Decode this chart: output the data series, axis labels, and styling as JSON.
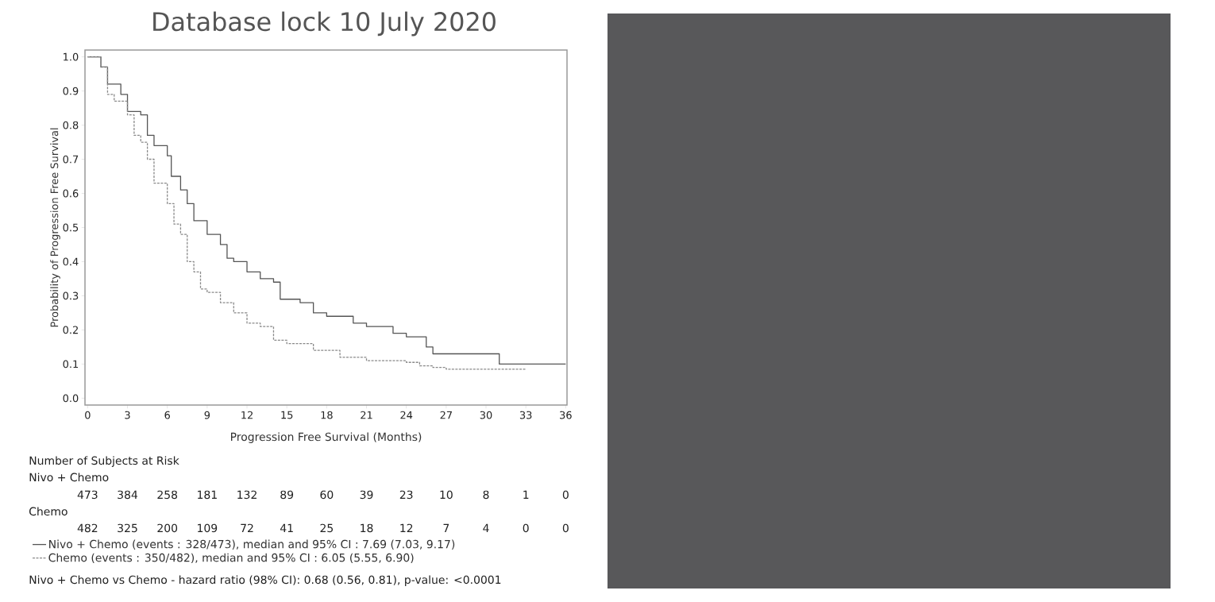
{
  "chart_data": {
    "type": "step",
    "title": "Database lock 10 July 2020",
    "xlabel": "Progression Free Survival (Months)",
    "ylabel": "Probability of Progression Free Survival",
    "xlim": [
      -0.2,
      36.1
    ],
    "ylim": [
      -0.02,
      1.02
    ],
    "xticks": [
      0,
      3,
      6,
      9,
      12,
      15,
      18,
      21,
      24,
      27,
      30,
      33,
      36
    ],
    "yticks": [
      {
        "value": 0,
        "label": "0.0"
      },
      0.1,
      0.2,
      0.3,
      0.4,
      0.5,
      0.6,
      0.7,
      0.8,
      0.9,
      {
        "value": 1,
        "label": "1.0"
      }
    ],
    "legend": "bottom",
    "series": [
      {
        "name": "Nivo + Chemo (events : 328/473), median and 95% CI : 7.69 (7.03, 9.17)",
        "color": "#555555",
        "line_style": "solid",
        "x": [
          0,
          1,
          1.5,
          2.5,
          3,
          4,
          4.5,
          5,
          6,
          6.3,
          7,
          7.5,
          8,
          9,
          10,
          10.5,
          11,
          12,
          13,
          14,
          14.5,
          16,
          17,
          18,
          20,
          21,
          22,
          23,
          24,
          25,
          25.5,
          26,
          31,
          36
        ],
        "values": [
          1.0,
          0.97,
          0.92,
          0.89,
          0.84,
          0.83,
          0.77,
          0.74,
          0.71,
          0.65,
          0.61,
          0.57,
          0.52,
          0.48,
          0.45,
          0.41,
          0.4,
          0.37,
          0.35,
          0.34,
          0.29,
          0.28,
          0.25,
          0.24,
          0.22,
          0.21,
          0.21,
          0.19,
          0.18,
          0.18,
          0.15,
          0.13,
          0.1,
          0.1
        ]
      },
      {
        "name": "Chemo (events : 350/482), median and 95% CI : 6.05 (5.55, 6.90)",
        "color": "#8a8a8a",
        "line_style": "dashed",
        "x": [
          0,
          1,
          1.5,
          2,
          3,
          3.5,
          4,
          4.5,
          5,
          6,
          6.5,
          7,
          7.5,
          8,
          8.5,
          9,
          10,
          11,
          12,
          13,
          14,
          15,
          17,
          19,
          21,
          24,
          25,
          26,
          27,
          33
        ],
        "values": [
          1.0,
          0.97,
          0.89,
          0.87,
          0.83,
          0.77,
          0.75,
          0.7,
          0.63,
          0.57,
          0.51,
          0.48,
          0.4,
          0.37,
          0.32,
          0.31,
          0.28,
          0.25,
          0.22,
          0.21,
          0.17,
          0.16,
          0.14,
          0.12,
          0.11,
          0.105,
          0.095,
          0.09,
          0.085,
          0.085
        ]
      }
    ],
    "annotations": [
      "Number of Subjects at Risk",
      "Nivo + Chemo",
      "473",
      "384",
      "258",
      "181",
      "132",
      "89",
      "60",
      "39",
      "23",
      "10",
      "8",
      "1",
      "0",
      "Chemo",
      "482",
      "325",
      "200",
      "109",
      "72",
      "41",
      "25",
      "18",
      "12",
      "7",
      "4",
      "0",
      "0",
      "Nivo + Chemo vs Chemo - hazard ratio (98% CI): 0.68 (0.56, 0.81), p-value: <0.0001"
    ]
  }
}
